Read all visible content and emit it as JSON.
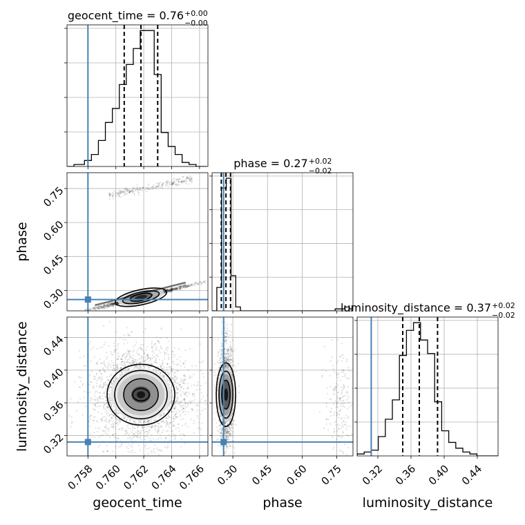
{
  "chart_data": {
    "type": "corner",
    "truth_color": "#4682b4",
    "parameters": [
      {
        "name": "geocent_time",
        "label": "geocent_time",
        "range": [
          0.7565,
          0.7666
        ],
        "ticks": [
          0.758,
          0.76,
          0.762,
          0.764,
          0.766
        ],
        "tick_labels": [
          "0.758",
          "0.760",
          "0.762",
          "0.764",
          "0.766"
        ],
        "truth": 0.758,
        "quantiles": [
          0.7606,
          0.7618,
          0.763
        ],
        "title": {
          "value": "0.76",
          "plus": "+0.00",
          "minus": "−0.00"
        },
        "hist_bins": [
          0.7565,
          0.75675,
          0.757,
          0.75725,
          0.7575,
          0.75775,
          0.758,
          0.75825,
          0.7585,
          0.75875,
          0.759,
          0.75925,
          0.7595,
          0.75975,
          0.76,
          0.76025,
          0.7605,
          0.76075,
          0.761,
          0.76125,
          0.7615,
          0.76175,
          0.762,
          0.76225,
          0.7625,
          0.76275,
          0.763,
          0.76325,
          0.7635,
          0.76375,
          0.764,
          0.76425,
          0.7645,
          0.76475,
          0.765,
          0.76525,
          0.7655,
          0.76575,
          0.766,
          0.76625,
          0.7665
        ],
        "hist_counts": [
          0,
          0,
          1,
          1,
          1,
          3,
          3,
          6,
          6,
          13,
          13,
          22,
          22,
          29,
          29,
          41,
          41,
          51,
          51,
          59,
          59,
          68,
          68,
          68,
          68,
          46,
          46,
          17,
          17,
          10,
          10,
          6,
          6,
          2,
          2,
          1,
          1,
          0,
          0,
          0
        ]
      },
      {
        "name": "phase",
        "label": "phase",
        "range": [
          0.21,
          0.82
        ],
        "ticks": [
          0.3,
          0.45,
          0.6,
          0.75
        ],
        "tick_labels": [
          "0.30",
          "0.45",
          "0.60",
          "0.75"
        ],
        "truth": 0.26,
        "quantiles": [
          0.25,
          0.27,
          0.29
        ],
        "title": {
          "value": "0.27",
          "plus": "+0.02",
          "minus": "−0.02"
        },
        "hist_bins": [
          0.21,
          0.2305,
          0.251,
          0.2715,
          0.292,
          0.3125,
          0.333,
          0.3535,
          0.374,
          0.3945,
          0.415,
          0.4355,
          0.456,
          0.4765,
          0.497,
          0.5175,
          0.538,
          0.5585,
          0.579,
          0.5995,
          0.62,
          0.6405,
          0.661,
          0.6815,
          0.702,
          0.7225,
          0.743,
          0.7635,
          0.784,
          0.8045,
          0.825
        ],
        "hist_counts": [
          0,
          12,
          63,
          68,
          18,
          2,
          0,
          0,
          0,
          0,
          0,
          0,
          0,
          0,
          0,
          0,
          0,
          0,
          0,
          0,
          0,
          0,
          0,
          0,
          0,
          0,
          1,
          1,
          2,
          1
        ]
      },
      {
        "name": "luminosity_distance",
        "label": "luminosity_distance",
        "range": [
          0.295,
          0.465
        ],
        "ticks": [
          0.32,
          0.36,
          0.4,
          0.44
        ],
        "tick_labels": [
          "0.32",
          "0.36",
          "0.40",
          "0.44"
        ],
        "truth": 0.312,
        "quantiles": [
          0.35,
          0.37,
          0.392
        ],
        "title": {
          "value": "0.37",
          "plus": "+0.02",
          "minus": "−0.02"
        },
        "hist_bins": [
          0.295,
          0.3035,
          0.312,
          0.3205,
          0.329,
          0.3375,
          0.346,
          0.3545,
          0.363,
          0.3715,
          0.38,
          0.3885,
          0.397,
          0.4055,
          0.414,
          0.4225,
          0.431,
          0.4395,
          0.448,
          0.4565,
          0.465
        ],
        "hist_counts": [
          1,
          2,
          3,
          10,
          19,
          29,
          52,
          65,
          69,
          60,
          53,
          28,
          13,
          7,
          4,
          2,
          1,
          0,
          0,
          0
        ]
      }
    ],
    "pairs": [
      {
        "x": "geocent_time",
        "y": "phase",
        "density_centers": [
          [
            0.7617,
            0.281,
            1.0
          ],
          [
            0.7605,
            0.272,
            0.6
          ],
          [
            0.7628,
            0.288,
            0.6
          ],
          [
            0.7595,
            0.266,
            0.3
          ],
          [
            0.764,
            0.295,
            0.25
          ]
        ],
        "secondary_mode": {
          "x_range": [
            0.7595,
            0.7655
          ],
          "y_range": [
            0.72,
            0.81
          ]
        }
      },
      {
        "x": "geocent_time",
        "y": "luminosity_distance",
        "density_centers": [
          [
            0.7617,
            0.37,
            1.0
          ]
        ]
      },
      {
        "x": "phase",
        "y": "luminosity_distance",
        "density_centers": [
          [
            0.27,
            0.37,
            1.0
          ]
        ],
        "secondary_mode": {
          "x_range": [
            0.7,
            0.82
          ],
          "y_range": [
            0.32,
            0.4
          ]
        }
      }
    ],
    "grid": true
  }
}
